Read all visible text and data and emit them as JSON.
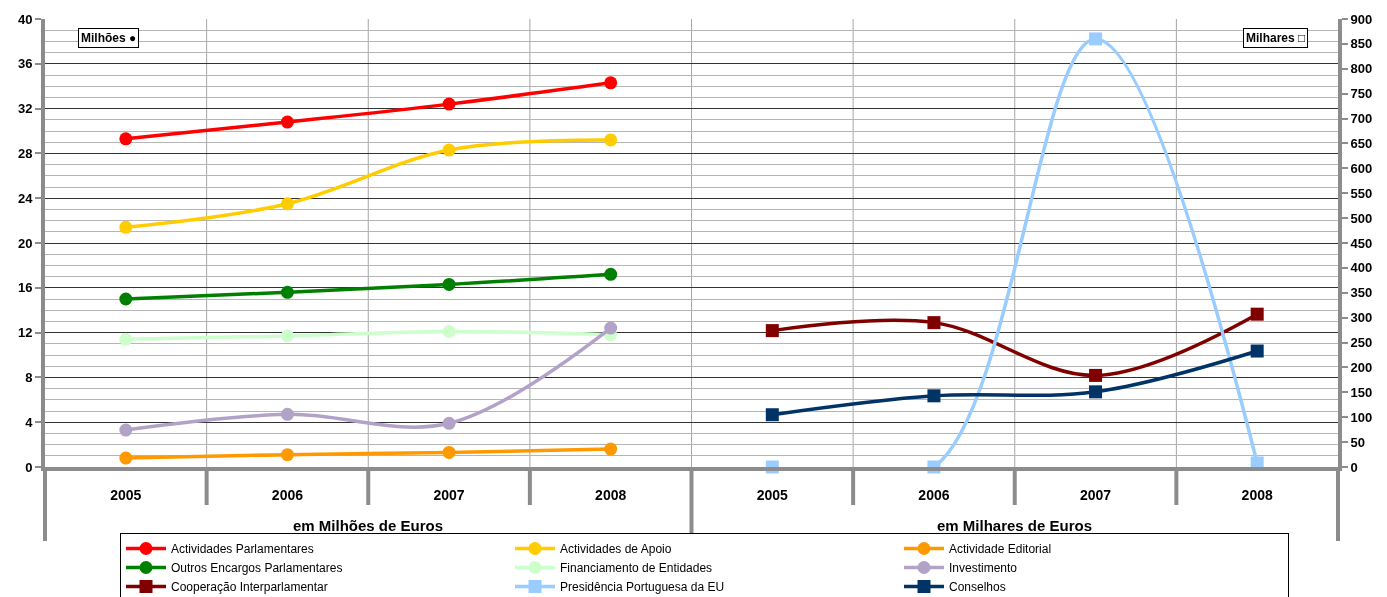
{
  "chart_data": {
    "type": "line",
    "categories": [
      "2005",
      "2006",
      "2007",
      "2008",
      "2005",
      "2006",
      "2007",
      "2008"
    ],
    "annotations": [
      "Milhões ●",
      "Milhares □",
      "em Milhões de Euros",
      "em Milhares de Euros"
    ],
    "ylim": [
      0,
      40
    ],
    "yticks": [
      0,
      {
        "value": 1,
        "label": null
      },
      {
        "value": 2,
        "label": null
      },
      {
        "value": 3,
        "label": null
      },
      4,
      {
        "value": 5,
        "label": null
      },
      {
        "value": 6,
        "label": null
      },
      {
        "value": 7,
        "label": null
      },
      8,
      {
        "value": 9,
        "label": null
      },
      {
        "value": 10,
        "label": null
      },
      {
        "value": 11,
        "label": null
      },
      12,
      {
        "value": 13,
        "label": null
      },
      {
        "value": 14,
        "label": null
      },
      {
        "value": 15,
        "label": null
      },
      16,
      {
        "value": 17,
        "label": null
      },
      {
        "value": 18,
        "label": null
      },
      {
        "value": 19,
        "label": null
      },
      20,
      {
        "value": 21,
        "label": null
      },
      {
        "value": 22,
        "label": null
      },
      {
        "value": 23,
        "label": null
      },
      24,
      {
        "value": 25,
        "label": null
      },
      {
        "value": 26,
        "label": null
      },
      {
        "value": 27,
        "label": null
      },
      28,
      {
        "value": 29,
        "label": null
      },
      {
        "value": 30,
        "label": null
      },
      {
        "value": 31,
        "label": null
      },
      32,
      {
        "value": 33,
        "label": null
      },
      {
        "value": 34,
        "label": null
      },
      {
        "value": 35,
        "label": null
      },
      36,
      {
        "value": 37,
        "label": null
      },
      {
        "value": 38,
        "label": null
      },
      {
        "value": 39,
        "label": null
      },
      40
    ],
    "y2lim": [
      0,
      900
    ],
    "y2ticks": [
      0,
      50,
      100,
      150,
      200,
      250,
      300,
      350,
      400,
      450,
      500,
      550,
      600,
      650,
      700,
      750,
      800,
      850,
      900
    ],
    "grid": true,
    "legend": "bottom",
    "line_style": "solid",
    "series": [
      {
        "name": "Actividades Parlamentares",
        "color": "#ff0000",
        "marker": "circle",
        "values": [
          29.3,
          30.8,
          32.4,
          34.3,
          null,
          null,
          null,
          null
        ]
      },
      {
        "name": "Actividades de Apoio",
        "color": "#ffcc00",
        "marker": "circle",
        "values": [
          21.4,
          23.5,
          28.3,
          29.2,
          null,
          null,
          null,
          null
        ]
      },
      {
        "name": "Actividade Editorial",
        "color": "#ff9900",
        "marker": "circle",
        "values": [
          0.8,
          1.1,
          1.3,
          1.6,
          null,
          null,
          null,
          null
        ]
      },
      {
        "name": "Outros Encargos Parlamentares",
        "color": "#008000",
        "marker": "circle",
        "values": [
          15.0,
          15.6,
          16.3,
          17.2,
          null,
          null,
          null,
          null
        ]
      },
      {
        "name": "Financiamento de Entidades",
        "color": "#ccffcc",
        "marker": "circle",
        "values": [
          11.4,
          11.7,
          12.1,
          11.8,
          null,
          null,
          null,
          null
        ]
      },
      {
        "name": "Investimento",
        "color": "#b3a2c7",
        "marker": "circle",
        "values": [
          3.3,
          4.7,
          3.9,
          12.4,
          null,
          null,
          null,
          null
        ]
      },
      {
        "name": "Cooperação Interparlamentar",
        "color": "#800000",
        "marker": "square",
        "axis": "y2",
        "values": [
          null,
          null,
          null,
          null,
          274,
          290,
          184,
          307
        ]
      },
      {
        "name": "Presidência Portuguesa da EU",
        "color": "#99ccff",
        "marker": "square",
        "axis": "y2",
        "values": [
          null,
          null,
          null,
          null,
          0,
          0,
          860,
          8
        ]
      },
      {
        "name": "Conselhos",
        "color": "#003366",
        "marker": "square",
        "axis": "y2",
        "values": [
          null,
          null,
          null,
          null,
          105,
          143,
          151,
          233
        ]
      }
    ]
  }
}
